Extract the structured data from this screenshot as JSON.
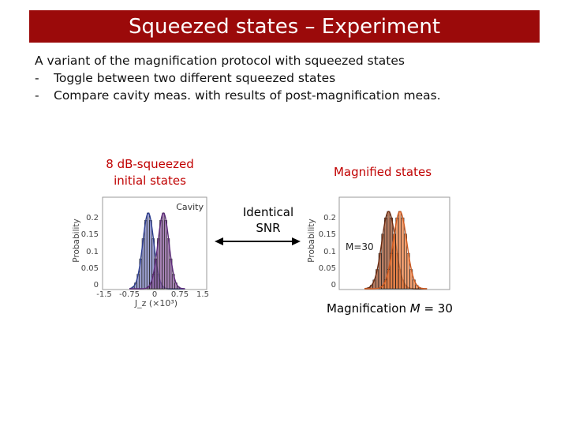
{
  "slide": {
    "title": "Squeezed states – Experiment",
    "intro": "A variant of the magnification protocol with squeezed states",
    "bullets": [
      "Toggle between two different squeezed states",
      "Compare cavity meas. with results of post-magnification meas."
    ]
  },
  "captions": {
    "left_line1": "8 dB-squeezed",
    "left_line2": "initial states",
    "right": "Magnified states",
    "arrow_line1": "Identical",
    "arrow_line2": "SNR",
    "magnification_prefix": "Magnification ",
    "magnification_symbol": "M",
    "magnification_suffix": " = 30"
  },
  "left_plot": {
    "ylabel": "Probability",
    "xlabel": "J_z (×10³)",
    "legend": "Cavity",
    "yticks": [
      "0.2",
      "0.15",
      "0.1",
      "0.05",
      "0"
    ],
    "xticks": [
      "-1.5",
      "-0.75",
      "0",
      "0.75",
      "1.5"
    ]
  },
  "right_plot": {
    "ylabel": "Probability",
    "legend": "M=30",
    "yticks": [
      "0.2",
      "0.15",
      "0.1",
      "0.05",
      "0"
    ]
  },
  "colors": {
    "title_bg": "#9b0a0a",
    "caption": "#c00000"
  }
}
